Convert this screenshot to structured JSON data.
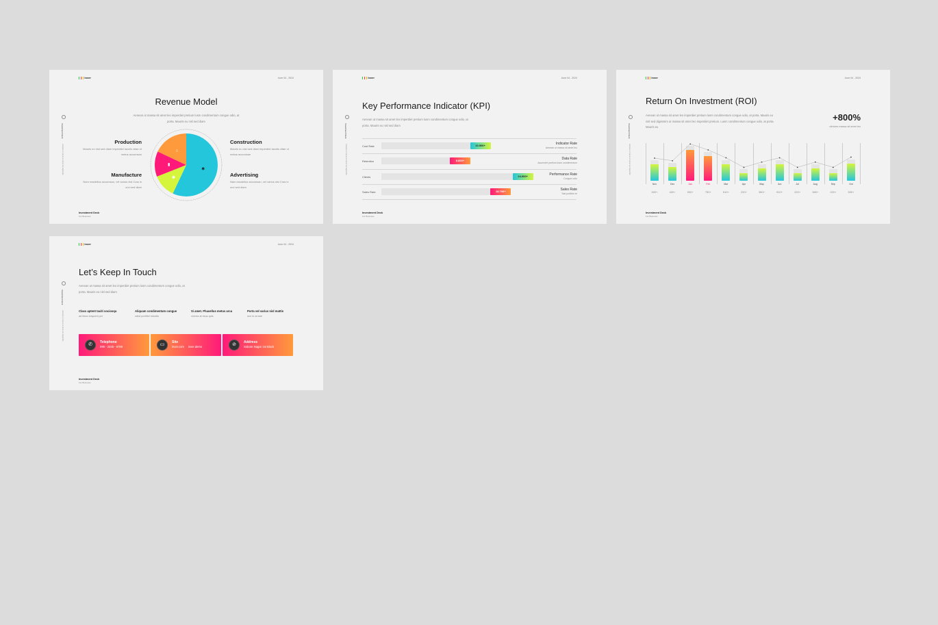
{
  "common": {
    "logo": "Inver",
    "date": "June 04 - 2024",
    "side_title": "Investment Deck",
    "side_sub": "Aenean ut massa sit amet leo imperdiet",
    "footer_title": "Investment Deck",
    "footer_sub": "For Business"
  },
  "colors": {
    "cyan": "#24c6dc",
    "lime": "#d4f53c",
    "pink": "#ff1a7a",
    "orange": "#ff9a3c"
  },
  "revenue": {
    "title": "Revenue Model",
    "subtitle": "Aenean ut massa sit amet leo imperdiet pretium lusm condimentum congue odio, at porta. Mauris eu nisl sed diam",
    "items": [
      {
        "name": "Production",
        "text": "Mauris eu nisl sed diam imperdiet iaculis vitae ut metus accumsan"
      },
      {
        "name": "Construction",
        "text": "Mauris eu nisl sed diam imperdiet iaculis vitae ut metus accumsan"
      },
      {
        "name": "Manufacture",
        "text": "Nam essdellus accumsan, vel varius nisi Cras in orci sed diam"
      },
      {
        "name": "Advertising",
        "text": "Nam essdellus accumsan, vel varius nisi Cras in orci sed diam"
      }
    ],
    "pie": [
      {
        "label": "Advertising",
        "share": 57,
        "color": "#24c6dc",
        "icon": "tools-icon"
      },
      {
        "label": "Manufacture",
        "share": 12,
        "color": "#d4f53c",
        "icon": "palette-icon"
      },
      {
        "label": "Construction",
        "share": 13,
        "color": "#ff1a7a",
        "icon": "hammer-icon"
      },
      {
        "label": "Production",
        "share": 18,
        "color": "#ff9a3c",
        "icon": "helmet-icon"
      }
    ]
  },
  "kpi": {
    "title": "Key Performance Indicator (KPI)",
    "subtitle": "Aenean ut massa sit amet leo imperdiet pretium lusm condimentum congue odio, at porta. Mauris eu nisl sed diam",
    "rows": [
      {
        "label": "Cost Rate",
        "value": "10.500+",
        "fill": 0.48,
        "style": "cl",
        "title": "Indicator Rate",
        "desc": "Aenean ut massa sit amet leo"
      },
      {
        "label": "Retention",
        "value": "8.600+",
        "fill": 0.37,
        "style": "po",
        "title": "Data Rate",
        "desc": "Asuendet pretium lusm condimentum"
      },
      {
        "label": "Clients",
        "value": "24.000+",
        "fill": 0.71,
        "style": "cl",
        "title": "Performance Rate",
        "desc": "Congue odio"
      },
      {
        "label": "Sales Rate",
        "value": "18.700+",
        "fill": 0.59,
        "style": "po",
        "title": "Sales Rate",
        "desc": "Tasl porttitor te"
      }
    ]
  },
  "roi": {
    "title": "Return On Investment (ROI)",
    "subtitle": "Aenean ut massa sit amet leo imperdiet pretium lusm condimentum congue odio, at porta. Mauris eu nisl sed dignissim ut massa sit amet leo imperdiet pretium. Lusm condimentum congue odio, at porta. Mauris eu",
    "big": "+800%",
    "big_sub": "ultricies massa sit amet leo",
    "months": [
      "Nov",
      "Dec",
      "Jan",
      "Feb",
      "Mar",
      "Apr",
      "May",
      "Jun",
      "Jul",
      "Aug",
      "Sep",
      "Oct"
    ],
    "labels": [
      "500+",
      "420+",
      "930+",
      "750+",
      "510+",
      "220+",
      "380+",
      "510+",
      "220+",
      "380+",
      "220+",
      "530+"
    ],
    "values": [
      500,
      420,
      930,
      750,
      510,
      220,
      380,
      510,
      220,
      380,
      220,
      530
    ],
    "highlight": [
      "Jan",
      "Feb"
    ]
  },
  "contact": {
    "title": "Let’s Keep In Touch",
    "subtitle": "Aenean ut massa sit amet leo imperdiet pretium lusm condimentum congue odio, at porta. Mauris eu nisl sed diam",
    "columns": [
      {
        "title": "Class aptent taciti sociosqu",
        "text": "ad litora torquent per"
      },
      {
        "title": "Aliquam condimentum congue",
        "text": "odiot porttitol lobortis"
      },
      {
        "title": "Si amet. Phasellus metus arcu",
        "text": "viverra at risus quis"
      },
      {
        "title": "Porta vel varius nisl mattis",
        "text": "orci in ornare"
      }
    ],
    "cards": [
      {
        "title": "Telephone",
        "text": "099 - 2345 - 6789",
        "icon": "phone-icon",
        "glyph": "✆"
      },
      {
        "title": "Site",
        "text": "inver.com     inver.demo",
        "icon": "globe-icon",
        "glyph": "▭"
      },
      {
        "title": "Address",
        "text": "Sobore Nagar 1st Block",
        "icon": "compass-icon",
        "glyph": "⊘"
      }
    ]
  }
}
